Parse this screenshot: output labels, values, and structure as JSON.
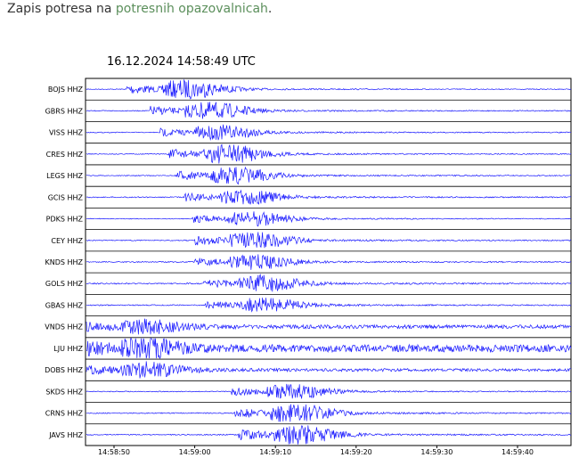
{
  "intro": {
    "before": "Zapis potresa na",
    "link": "potresnih opazovalnicah",
    "after": "."
  },
  "plot": {
    "title": "16.12.2024  14:58:49 UTC",
    "stations": [
      "BOJS HHZ",
      "GBRS HHZ",
      "VISS HHZ",
      "CRES HHZ",
      "LEGS HHZ",
      "GCIS HHZ",
      "PDKS HHZ",
      "CEY HHZ",
      "KNDS HHZ",
      "GOLS HHZ",
      "GBAS HHZ",
      "VNDS HHZ",
      "LJU HHZ",
      "DOBS HHZ",
      "SKDS HHZ",
      "CRNS HHZ",
      "JAVS HHZ"
    ],
    "time_ticks": [
      "14:58:50",
      "14:59:00",
      "14:59:10",
      "14:59:20",
      "14:59:30",
      "14:59:40"
    ]
  }
}
